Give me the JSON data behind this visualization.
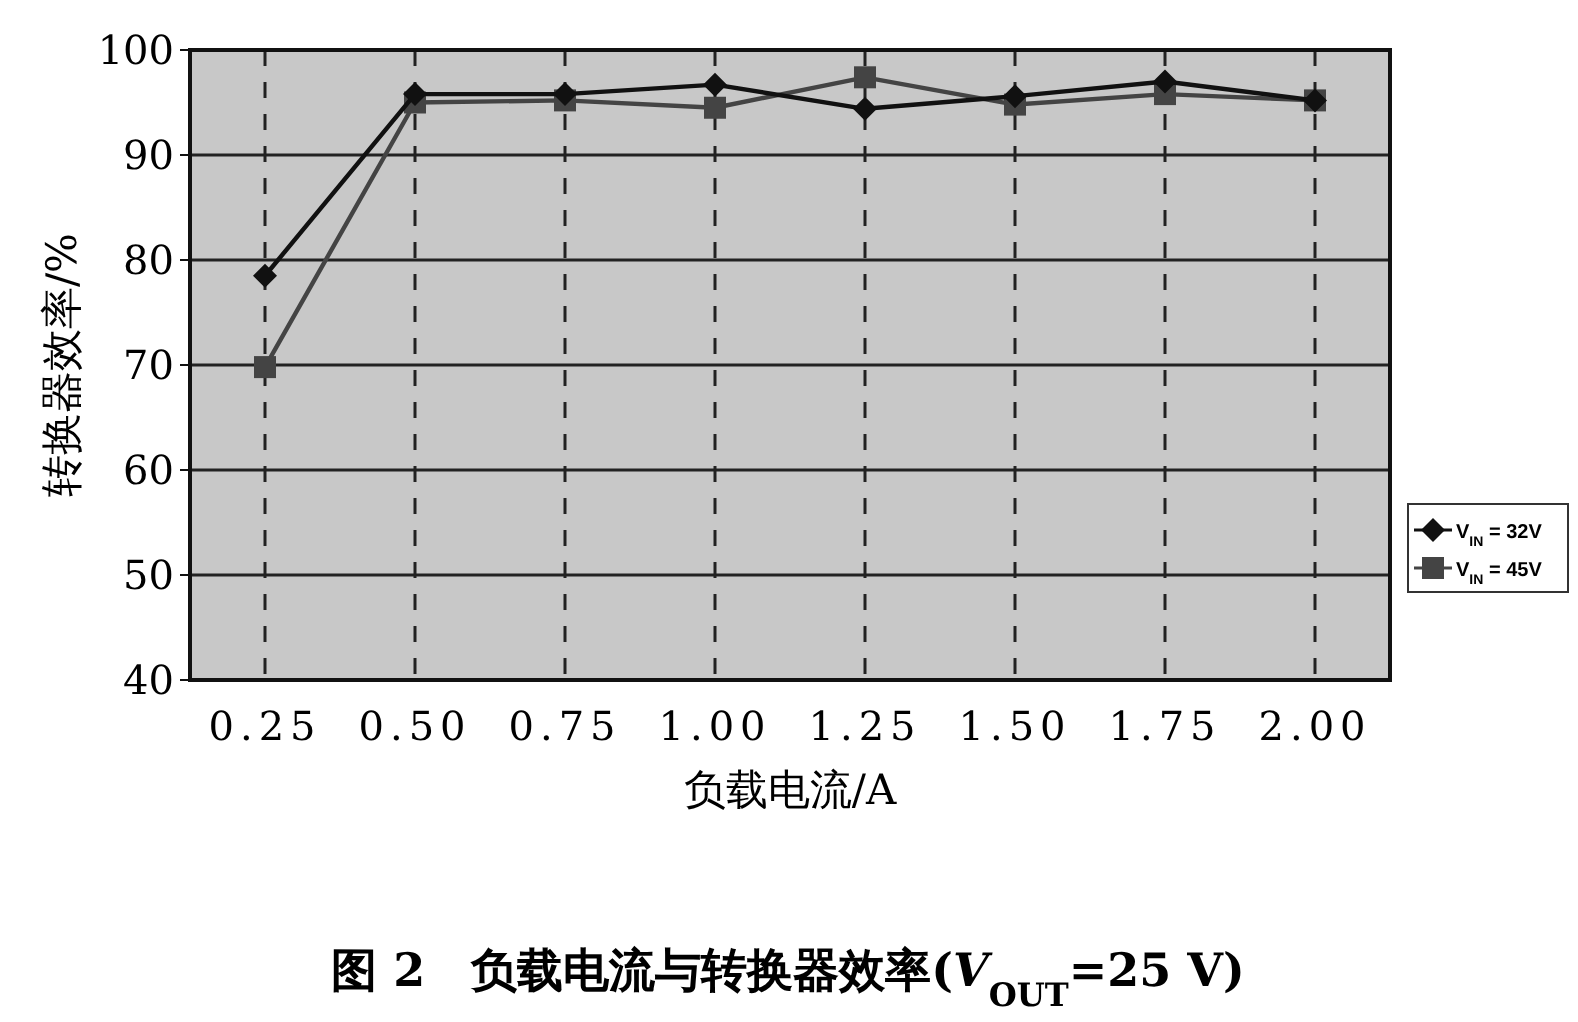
{
  "chart_data": {
    "type": "line",
    "title": "图 2　负载电流与转换器效率(*V*$_{OUT}$=25 V)",
    "xlabel": "负载电流/A",
    "ylabel": "转换器效率/%",
    "categories": [
      "0.25",
      "0.50",
      "0.75",
      "1.00",
      "1.25",
      "1.50",
      "1.75",
      "2.00"
    ],
    "series": [
      {
        "name": "V$_{IN}$ = 32V",
        "color": "#111111",
        "marker": "diamond",
        "values": [
          78.5,
          95.8,
          95.8,
          96.7,
          94.4,
          95.6,
          97,
          95.2
        ]
      },
      {
        "name": "V$_{IN}$ = 45V",
        "color": "#444444",
        "marker": "square",
        "values": [
          69.8,
          95,
          95.2,
          94.5,
          97.4,
          94.8,
          95.8,
          95.2
        ]
      }
    ],
    "ylim": [
      40,
      100
    ],
    "yticks": [
      40,
      50,
      60,
      70,
      80,
      90,
      100
    ],
    "grid": true,
    "legend": "right"
  }
}
